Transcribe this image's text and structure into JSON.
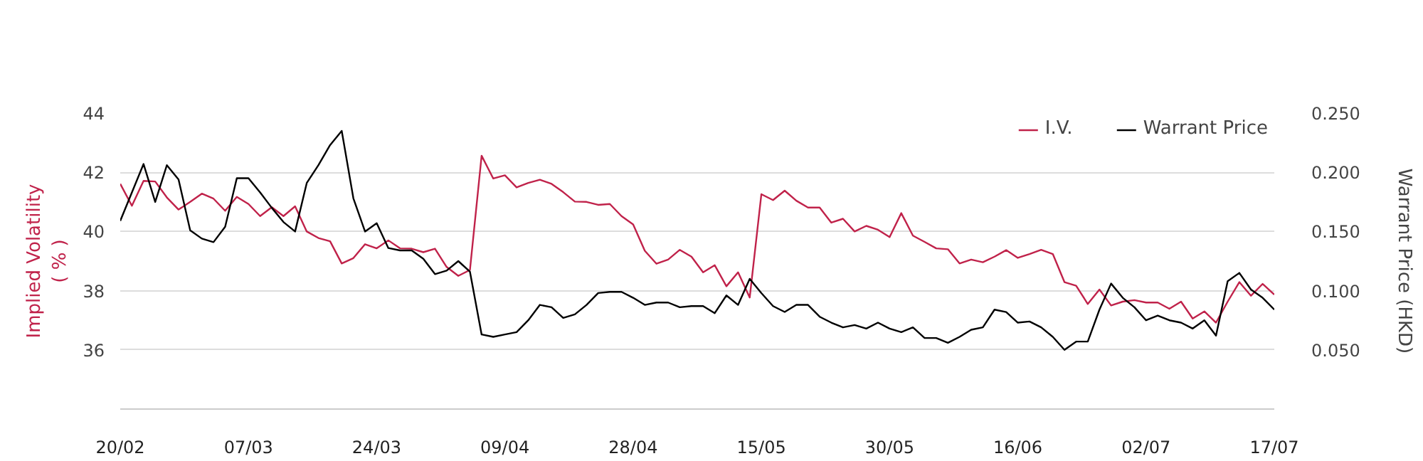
{
  "chart_data": {
    "type": "line",
    "ylabel": "Implied Volatility ( % )",
    "y2label": "Warrant Price (HKD)",
    "categories": [
      "20/02",
      null,
      null,
      null,
      null,
      null,
      null,
      null,
      null,
      null,
      null,
      "07/03",
      null,
      null,
      null,
      null,
      null,
      null,
      null,
      null,
      null,
      null,
      "24/03",
      null,
      null,
      null,
      null,
      null,
      null,
      null,
      null,
      null,
      null,
      "09/04",
      null,
      null,
      null,
      null,
      null,
      null,
      null,
      null,
      null,
      null,
      "28/04",
      null,
      null,
      null,
      null,
      null,
      null,
      null,
      null,
      null,
      null,
      "15/05",
      null,
      null,
      null,
      null,
      null,
      null,
      null,
      null,
      null,
      null,
      "30/05",
      null,
      null,
      null,
      null,
      null,
      null,
      null,
      null,
      null,
      null,
      "16/06",
      null,
      null,
      null,
      null,
      null,
      null,
      null,
      null,
      null,
      null,
      "02/07",
      null,
      null,
      null,
      null,
      null,
      null,
      null,
      null,
      null,
      null,
      "17/07"
    ],
    "series": [
      {
        "name": "I.V.",
        "color": "#c0224a",
        "values": [
          41.61,
          40.87,
          41.71,
          41.69,
          41.15,
          40.74,
          41.0,
          41.28,
          41.11,
          40.7,
          41.17,
          40.93,
          40.52,
          40.82,
          40.52,
          40.85,
          40.0,
          39.78,
          39.67,
          38.92,
          39.1,
          39.57,
          39.43,
          39.7,
          39.43,
          39.42,
          39.3,
          39.42,
          38.8,
          38.5,
          38.7,
          42.56,
          41.79,
          41.9,
          41.49,
          41.64,
          41.75,
          41.61,
          41.33,
          41.01,
          41.0,
          40.9,
          40.93,
          40.52,
          40.24,
          39.35,
          38.91,
          39.05,
          39.38,
          39.15,
          38.62,
          38.86,
          38.15,
          38.62,
          37.77,
          41.26,
          41.06,
          41.38,
          41.04,
          40.81,
          40.81,
          40.3,
          40.43,
          40.0,
          40.19,
          40.06,
          39.81,
          40.62,
          39.86,
          39.65,
          39.43,
          39.4,
          38.92,
          39.05,
          38.96,
          39.15,
          39.37,
          39.11,
          39.24,
          39.38,
          39.24,
          38.29,
          38.17,
          37.55,
          38.04,
          37.5,
          37.63,
          37.68,
          37.6,
          37.6,
          37.39,
          37.63,
          37.06,
          37.3,
          36.92,
          37.63,
          38.29,
          37.83,
          38.23,
          37.87
        ]
      },
      {
        "name": "Warrant Price",
        "color": "#000000",
        "axis": "y2",
        "values": [
          0.159,
          0.183,
          0.207,
          0.175,
          0.206,
          0.194,
          0.151,
          0.144,
          0.141,
          0.154,
          0.195,
          0.195,
          0.183,
          0.17,
          0.158,
          0.15,
          0.191,
          0.206,
          0.223,
          0.235,
          0.178,
          0.15,
          0.157,
          0.136,
          0.134,
          0.134,
          0.127,
          0.114,
          0.117,
          0.125,
          0.116,
          0.063,
          0.061,
          0.063,
          0.065,
          0.075,
          0.088,
          0.086,
          0.077,
          0.08,
          0.088,
          0.098,
          0.099,
          0.099,
          0.094,
          0.088,
          0.09,
          0.09,
          0.086,
          0.087,
          0.087,
          0.081,
          0.096,
          0.088,
          0.11,
          0.098,
          0.087,
          0.082,
          0.088,
          0.088,
          0.078,
          0.073,
          0.069,
          0.071,
          0.068,
          0.073,
          0.068,
          0.065,
          0.069,
          0.06,
          0.06,
          0.056,
          0.061,
          0.067,
          0.069,
          0.084,
          0.082,
          0.073,
          0.074,
          0.069,
          0.061,
          0.05,
          0.057,
          0.057,
          0.084,
          0.106,
          0.094,
          0.086,
          0.075,
          0.079,
          0.075,
          0.073,
          0.068,
          0.075,
          0.062,
          0.108,
          0.115,
          0.101,
          0.094,
          0.084
        ]
      }
    ],
    "ylim": [
      34,
      44
    ],
    "yticks": [
      36,
      38,
      40,
      42,
      44
    ],
    "y2lim": [
      0,
      0.25
    ],
    "y2ticks": [
      {
        "value": 0.05,
        "label": "0.050"
      },
      {
        "value": 0.1,
        "label": "0.100"
      },
      {
        "value": 0.15,
        "label": "0.150"
      },
      {
        "value": 0.2,
        "label": "0.200"
      },
      {
        "value": 0.25,
        "label": "0.250"
      }
    ],
    "grid": "y",
    "legend": "top right",
    "marker": "none",
    "line_style": "solid"
  }
}
